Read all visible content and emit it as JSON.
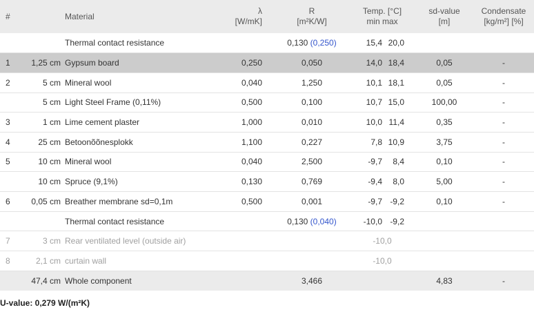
{
  "headers": {
    "num": "#",
    "material": "Material",
    "lambda_sym": "λ",
    "lambda_unit": "[W/mK]",
    "r_sym": "R",
    "r_unit": "[m²K/W]",
    "temp_title": "Temp. [°C]",
    "temp_sub": "min max",
    "sd_title": "sd-value",
    "sd_unit": "[m]",
    "cond_title": "Condensate",
    "cond_unit": "[kg/m²] [%]"
  },
  "rows": [
    {
      "num": "",
      "thickness": "",
      "material": "Thermal contact resistance",
      "lambda": "",
      "r": "0,130",
      "r_extra": "(0,250)",
      "tmin": "15,4",
      "tmax": "20,0",
      "temp_single": "",
      "sd": "",
      "cond": ""
    },
    {
      "num": "1",
      "thickness": "1,25 cm",
      "material": "Gypsum board",
      "lambda": "0,250",
      "r": "0,050",
      "r_extra": "",
      "tmin": "14,0",
      "tmax": "18,4",
      "temp_single": "",
      "sd": "0,05",
      "cond": "-"
    },
    {
      "num": "2",
      "thickness": "5 cm",
      "material": "Mineral wool",
      "lambda": "0,040",
      "r": "1,250",
      "r_extra": "",
      "tmin": "10,1",
      "tmax": "18,1",
      "temp_single": "",
      "sd": "0,05",
      "cond": "-"
    },
    {
      "num": "",
      "thickness": "5 cm",
      "material": "Light Steel Frame (0,11%)",
      "lambda": "0,500",
      "r": "0,100",
      "r_extra": "",
      "tmin": "10,7",
      "tmax": "15,0",
      "temp_single": "",
      "sd": "100,00",
      "cond": "-"
    },
    {
      "num": "3",
      "thickness": "1 cm",
      "material": "Lime cement plaster",
      "lambda": "1,000",
      "r": "0,010",
      "r_extra": "",
      "tmin": "10,0",
      "tmax": "11,4",
      "temp_single": "",
      "sd": "0,35",
      "cond": "-"
    },
    {
      "num": "4",
      "thickness": "25 cm",
      "material": "Betoonõõnesplokk",
      "lambda": "1,100",
      "r": "0,227",
      "r_extra": "",
      "tmin": "7,8",
      "tmax": "10,9",
      "temp_single": "",
      "sd": "3,75",
      "cond": "-"
    },
    {
      "num": "5",
      "thickness": "10 cm",
      "material": "Mineral wool",
      "lambda": "0,040",
      "r": "2,500",
      "r_extra": "",
      "tmin": "-9,7",
      "tmax": "8,4",
      "temp_single": "",
      "sd": "0,10",
      "cond": "-"
    },
    {
      "num": "",
      "thickness": "10 cm",
      "material": "Spruce (9,1%)",
      "lambda": "0,130",
      "r": "0,769",
      "r_extra": "",
      "tmin": "-9,4",
      "tmax": "8,0",
      "temp_single": "",
      "sd": "5,00",
      "cond": "-"
    },
    {
      "num": "6",
      "thickness": "0,05 cm",
      "material": "Breather membrane sd=0,1m",
      "lambda": "0,500",
      "r": "0,001",
      "r_extra": "",
      "tmin": "-9,7",
      "tmax": "-9,2",
      "temp_single": "",
      "sd": "0,10",
      "cond": "-"
    },
    {
      "num": "",
      "thickness": "",
      "material": "Thermal contact resistance",
      "lambda": "",
      "r": "0,130",
      "r_extra": "(0,040)",
      "tmin": "-10,0",
      "tmax": "-9,2",
      "temp_single": "",
      "sd": "",
      "cond": ""
    },
    {
      "num": "7",
      "thickness": "3 cm",
      "material": "Rear ventilated level (outside air)",
      "lambda": "",
      "r": "",
      "r_extra": "",
      "tmin": "",
      "tmax": "",
      "temp_single": "-10,0",
      "sd": "",
      "cond": ""
    },
    {
      "num": "8",
      "thickness": "2,1 cm",
      "material": "curtain wall",
      "lambda": "",
      "r": "",
      "r_extra": "",
      "tmin": "",
      "tmax": "",
      "temp_single": "-10,0",
      "sd": "",
      "cond": ""
    },
    {
      "num": "",
      "thickness": "47,4 cm",
      "material": "Whole component",
      "lambda": "",
      "r": "3,466",
      "r_extra": "",
      "tmin": "",
      "tmax": "",
      "temp_single": "",
      "sd": "4,83",
      "cond": "-"
    }
  ],
  "u_value": "U-value: 0,279 W/(m²K)"
}
